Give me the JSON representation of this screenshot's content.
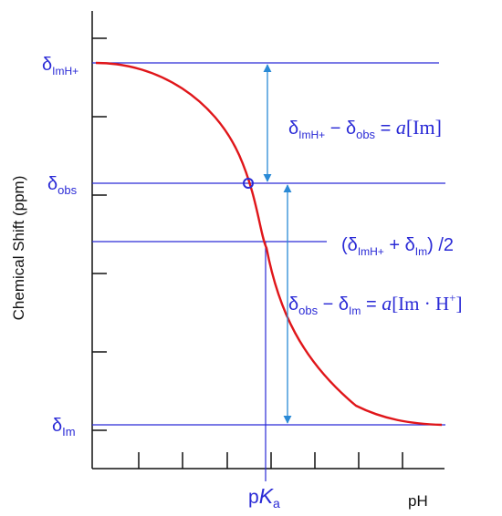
{
  "colors": {
    "axis": "#111111",
    "guide_lines": "#2a2ad6",
    "curve": "#e0161a",
    "arrows": "#2a8ad6",
    "label_text": "#2a2ad6",
    "marker": "#2a2ad6"
  },
  "axes": {
    "ylabel": "Chemical Shift (ppm)",
    "xlabel": "pH"
  },
  "levels": {
    "imh": {
      "symbol": "δ",
      "sub": "ImH+"
    },
    "obs": {
      "symbol": "δ",
      "sub": "obs"
    },
    "im": {
      "symbol": "δ",
      "sub": "Im"
    }
  },
  "pka_label": {
    "p": "p",
    "K": "K",
    "a": "a"
  },
  "annotations": {
    "upper": {
      "delta1": "δ",
      "sub1": "ImH+",
      "minus": " − ",
      "delta2": "δ",
      "sub2": "obs",
      "equals": " = ",
      "a": "a",
      "rest": "[Im]"
    },
    "mid": {
      "open": "(",
      "delta1": "δ",
      "sub1": "ImH+",
      "plus": " + ",
      "delta2": "δ",
      "sub2": "Im",
      "close": ") /2"
    },
    "lower": {
      "delta1": "δ",
      "sub1": "obs",
      "minus": " − ",
      "delta2": "δ",
      "sub2": "Im",
      "equals": " = ",
      "a": "a",
      "rest": "[Im · H",
      "sup": "+",
      "end": "]"
    }
  }
}
